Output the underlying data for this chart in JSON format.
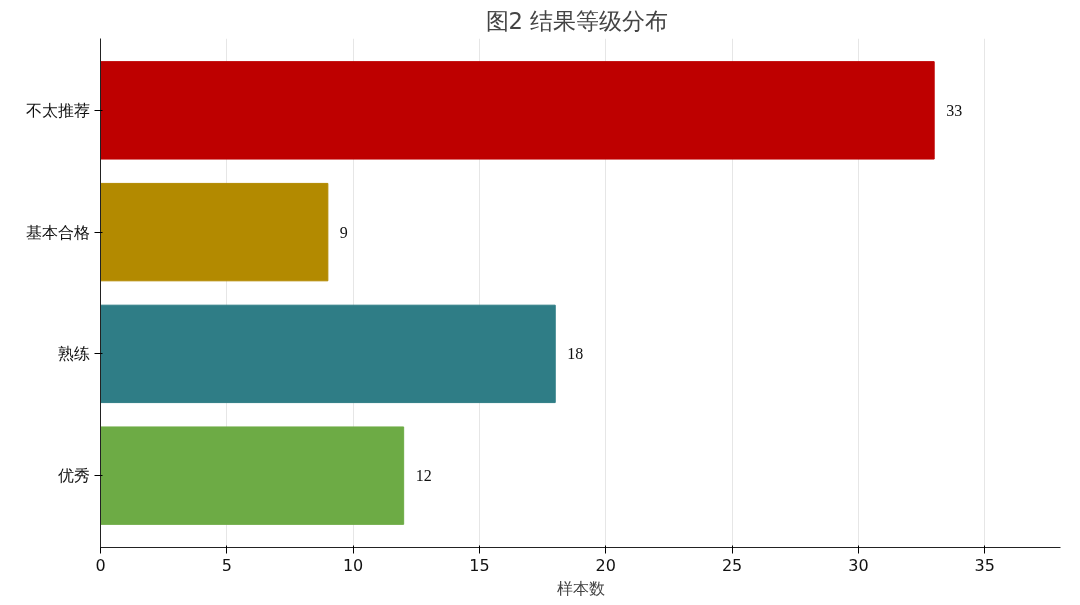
{
  "chart_data": {
    "type": "bar",
    "orientation": "horizontal",
    "title": "图2  结果等级分布",
    "xlabel": "样本数",
    "categories": [
      "不太推荐",
      "基本合格",
      "熟练",
      "优秀"
    ],
    "values": [
      33,
      9,
      18,
      12
    ],
    "colors": [
      "#be0000",
      "#b38a00",
      "#2f7d86",
      "#6dab45"
    ],
    "xlim": [
      0,
      38
    ],
    "xticks": [
      0,
      5,
      10,
      15,
      20,
      25,
      30,
      35
    ],
    "grid": "x",
    "data_labels": true
  }
}
